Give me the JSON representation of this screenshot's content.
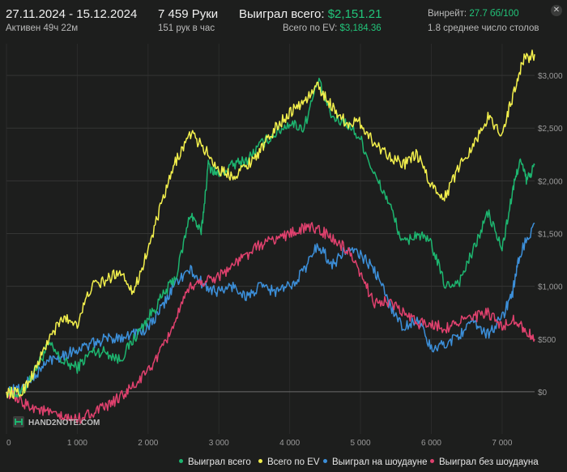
{
  "header": {
    "date_range": "27.11.2024 - 15.12.2024",
    "active": "Активен 49ч 22м",
    "hands": "7 459 Руки",
    "hands_per_hour": "151 рук в час",
    "won_label": "Выиграл всего:",
    "won_value": "$2,151.21",
    "ev_label": "Всего по EV:",
    "ev_value": "$3,184.36",
    "winrate_label": "Винрейт:",
    "winrate_value": "27.7 бб/100",
    "tables": "1.8 среднее число столов",
    "close_icon": "close-icon"
  },
  "logo": "HAND2NOTE.COM",
  "colors": {
    "background": "#1d1e1d",
    "won": "#1db56f",
    "ev": "#f2ef4c",
    "showdown": "#3c8fd9",
    "nonshowdown": "#e0416e",
    "accent_green": "#22c57a"
  },
  "chart_data": {
    "type": "line",
    "xlim": [
      0,
      7459
    ],
    "ylim": [
      -400,
      3300
    ],
    "x_ticks": [
      0,
      1000,
      2000,
      3000,
      4000,
      5000,
      6000,
      7000
    ],
    "x_tick_labels": [
      "0",
      "1 000",
      "2 000",
      "3 000",
      "4 000",
      "5 000",
      "6 000",
      "7 000"
    ],
    "y_ticks": [
      0,
      500,
      1000,
      1500,
      2000,
      2500,
      3000
    ],
    "y_tick_labels": [
      "$0",
      "$500",
      "$1,000",
      "$1,500",
      "$2,000",
      "$2,500",
      "$3,000"
    ],
    "grid": "horizontal",
    "legend_position": "bottom",
    "series": [
      {
        "name": "Выиграл всего",
        "color_key": "won",
        "points": [
          [
            0,
            0
          ],
          [
            200,
            -30
          ],
          [
            400,
            200
          ],
          [
            600,
            450
          ],
          [
            800,
            280
          ],
          [
            1000,
            230
          ],
          [
            1200,
            380
          ],
          [
            1400,
            380
          ],
          [
            1600,
            300
          ],
          [
            1800,
            500
          ],
          [
            2000,
            700
          ],
          [
            2200,
            900
          ],
          [
            2400,
            1100
          ],
          [
            2600,
            1700
          ],
          [
            2750,
            1500
          ],
          [
            2850,
            2150
          ],
          [
            3000,
            2050
          ],
          [
            3200,
            2150
          ],
          [
            3400,
            2200
          ],
          [
            3600,
            2350
          ],
          [
            3800,
            2450
          ],
          [
            4000,
            2550
          ],
          [
            4200,
            2500
          ],
          [
            4400,
            2950
          ],
          [
            4600,
            2600
          ],
          [
            4800,
            2550
          ],
          [
            5000,
            2400
          ],
          [
            5200,
            2050
          ],
          [
            5400,
            1800
          ],
          [
            5600,
            1400
          ],
          [
            5800,
            1500
          ],
          [
            6000,
            1400
          ],
          [
            6200,
            1000
          ],
          [
            6400,
            1050
          ],
          [
            6600,
            1350
          ],
          [
            6800,
            1700
          ],
          [
            7000,
            1350
          ],
          [
            7150,
            1900
          ],
          [
            7250,
            2200
          ],
          [
            7350,
            2000
          ],
          [
            7459,
            2150
          ]
        ]
      },
      {
        "name": "Всего по EV",
        "color_key": "ev",
        "points": [
          [
            0,
            0
          ],
          [
            200,
            -20
          ],
          [
            400,
            200
          ],
          [
            600,
            500
          ],
          [
            800,
            700
          ],
          [
            1000,
            650
          ],
          [
            1200,
            1000
          ],
          [
            1400,
            1050
          ],
          [
            1600,
            1150
          ],
          [
            1800,
            950
          ],
          [
            2000,
            1350
          ],
          [
            2200,
            1800
          ],
          [
            2400,
            2200
          ],
          [
            2600,
            2450
          ],
          [
            2800,
            2300
          ],
          [
            3000,
            2100
          ],
          [
            3200,
            2050
          ],
          [
            3400,
            2150
          ],
          [
            3600,
            2300
          ],
          [
            3800,
            2500
          ],
          [
            4000,
            2650
          ],
          [
            4200,
            2750
          ],
          [
            4400,
            2900
          ],
          [
            4600,
            2700
          ],
          [
            4800,
            2550
          ],
          [
            5000,
            2550
          ],
          [
            5200,
            2350
          ],
          [
            5400,
            2250
          ],
          [
            5600,
            2150
          ],
          [
            5800,
            2250
          ],
          [
            6000,
            1950
          ],
          [
            6200,
            1850
          ],
          [
            6400,
            2150
          ],
          [
            6600,
            2350
          ],
          [
            6800,
            2600
          ],
          [
            7000,
            2450
          ],
          [
            7150,
            2800
          ],
          [
            7300,
            3150
          ],
          [
            7459,
            3200
          ]
        ]
      },
      {
        "name": "Выиграл на шоудауне",
        "color_key": "showdown",
        "points": [
          [
            0,
            0
          ],
          [
            200,
            30
          ],
          [
            400,
            150
          ],
          [
            600,
            300
          ],
          [
            800,
            350
          ],
          [
            1000,
            400
          ],
          [
            1200,
            450
          ],
          [
            1400,
            500
          ],
          [
            1600,
            520
          ],
          [
            1800,
            550
          ],
          [
            2000,
            600
          ],
          [
            2200,
            800
          ],
          [
            2400,
            1050
          ],
          [
            2600,
            1150
          ],
          [
            2800,
            1000
          ],
          [
            3000,
            950
          ],
          [
            3200,
            1000
          ],
          [
            3400,
            900
          ],
          [
            3600,
            1000
          ],
          [
            3800,
            950
          ],
          [
            4000,
            1000
          ],
          [
            4200,
            1150
          ],
          [
            4400,
            1400
          ],
          [
            4600,
            1200
          ],
          [
            4800,
            1350
          ],
          [
            5000,
            1300
          ],
          [
            5200,
            1150
          ],
          [
            5400,
            850
          ],
          [
            5600,
            600
          ],
          [
            5800,
            700
          ],
          [
            6000,
            400
          ],
          [
            6200,
            450
          ],
          [
            6400,
            550
          ],
          [
            6600,
            650
          ],
          [
            6800,
            550
          ],
          [
            7000,
            700
          ],
          [
            7150,
            950
          ],
          [
            7250,
            1300
          ],
          [
            7459,
            1600
          ]
        ]
      },
      {
        "name": "Выиграл без шоудауна",
        "color_key": "nonshowdown",
        "points": [
          [
            0,
            0
          ],
          [
            200,
            -100
          ],
          [
            400,
            -150
          ],
          [
            600,
            -200
          ],
          [
            800,
            -250
          ],
          [
            1000,
            -260
          ],
          [
            1200,
            -200
          ],
          [
            1400,
            -150
          ],
          [
            1600,
            -50
          ],
          [
            1800,
            50
          ],
          [
            2000,
            200
          ],
          [
            2200,
            400
          ],
          [
            2400,
            700
          ],
          [
            2600,
            1000
          ],
          [
            2800,
            1050
          ],
          [
            3000,
            1100
          ],
          [
            3200,
            1200
          ],
          [
            3400,
            1300
          ],
          [
            3600,
            1400
          ],
          [
            3800,
            1450
          ],
          [
            4000,
            1500
          ],
          [
            4200,
            1550
          ],
          [
            4400,
            1550
          ],
          [
            4600,
            1450
          ],
          [
            4800,
            1350
          ],
          [
            5000,
            1100
          ],
          [
            5200,
            850
          ],
          [
            5400,
            850
          ],
          [
            5600,
            750
          ],
          [
            5800,
            650
          ],
          [
            6000,
            650
          ],
          [
            6200,
            600
          ],
          [
            6400,
            680
          ],
          [
            6600,
            700
          ],
          [
            6800,
            750
          ],
          [
            7000,
            600
          ],
          [
            7150,
            700
          ],
          [
            7300,
            600
          ],
          [
            7459,
            500
          ]
        ]
      }
    ]
  }
}
